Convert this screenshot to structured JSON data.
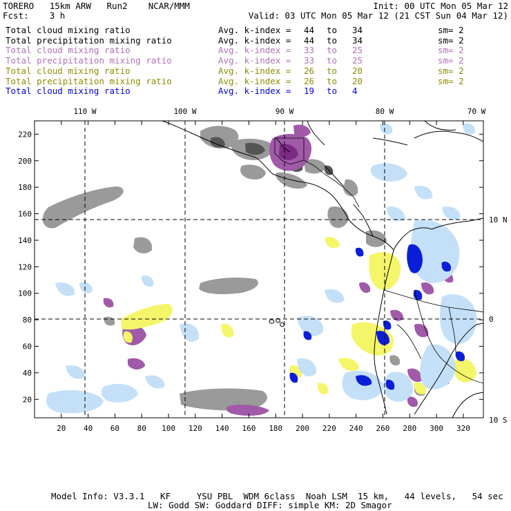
{
  "header": {
    "model": "TORERO",
    "resolution": "15km ARW",
    "run": "Run2",
    "center": "NCAR/MMM",
    "init": "Init: 00 UTC Mon 05 Mar 12",
    "fcst_label": "Fcst:",
    "fcst_value": "3 h",
    "valid": "Valid: 03 UTC Mon 05 Mar 12 (21 CST Sun 04 Mar 12)"
  },
  "legend": [
    {
      "field": "Total cloud mixing ratio",
      "index_label": "Avg. k-index =",
      "from": "44",
      "to_word": "to",
      "to": "34",
      "sm": "sm= 2",
      "color": "#000000"
    },
    {
      "field": "Total precipitation mixing ratio",
      "index_label": "Avg. k-index =",
      "from": "44",
      "to_word": "to",
      "to": "34",
      "sm": "sm= 2",
      "color": "#000000"
    },
    {
      "field": "Total cloud mixing ratio",
      "index_label": "Avg. k-index =",
      "from": "33",
      "to_word": "to",
      "to": "25",
      "sm": "sm= 2",
      "color": "#b070b8"
    },
    {
      "field": "Total precipitation mixing ratio",
      "index_label": "Avg. k-index =",
      "from": "33",
      "to_word": "to",
      "to": "25",
      "sm": "sm= 2",
      "color": "#b070b8"
    },
    {
      "field": "Total cloud mixing ratio",
      "index_label": "Avg. k-index =",
      "from": "26",
      "to_word": "to",
      "to": "20",
      "sm": "sm= 2",
      "color": "#8c8c00"
    },
    {
      "field": "Total precipitation mixing ratio",
      "index_label": "Avg. k-index =",
      "from": "26",
      "to_word": "to",
      "to": "20",
      "sm": "sm= 2",
      "color": "#8c8c00"
    },
    {
      "field": "Total cloud mixing ratio",
      "index_label": "Avg. k-index =",
      "from": "19",
      "to_word": "to",
      "to": "4",
      "sm": "",
      "color": "#0000dd"
    }
  ],
  "map": {
    "lon_labels": [
      "110 W",
      "100 W",
      "90 W",
      "80 W",
      "70 W"
    ],
    "lat_labels": [
      "10 N",
      "0",
      "10 S"
    ],
    "x_ticks": [
      "20",
      "40",
      "60",
      "80",
      "100",
      "120",
      "140",
      "160",
      "180",
      "200",
      "220",
      "240",
      "260",
      "280",
      "300",
      "320"
    ],
    "y_ticks": [
      "220",
      "200",
      "180",
      "160",
      "140",
      "120",
      "100",
      "80",
      "60",
      "40",
      "20"
    ]
  },
  "colors": {
    "gray": "#9a9a9a",
    "dark_gray": "#555555",
    "purple": "#a05aa8",
    "dark_purple": "#7a2a82",
    "yellow": "#f5f56a",
    "light_blue": "#c4e0f8",
    "blue": "#0a1ed8"
  },
  "footer": {
    "line1": "Model Info: V3.3.1   KF     YSU PBL  WDM 6class  Noah LSM  15 km,   44 levels,   54 sec",
    "line2": "LW: Godd SW: Goddard DIFF: simple KM: 2D Smagor"
  }
}
